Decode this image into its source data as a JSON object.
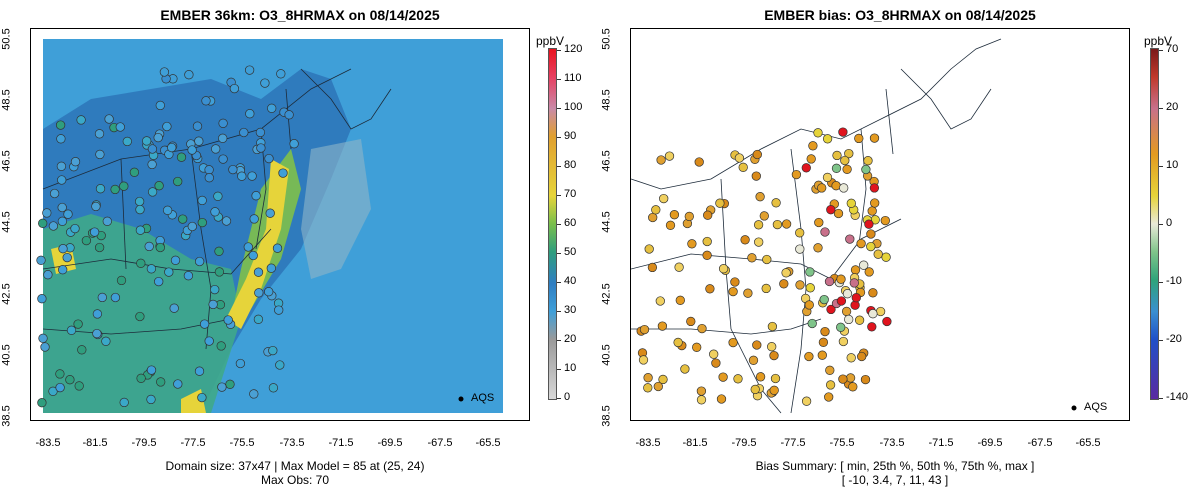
{
  "left": {
    "title": "EMBER 36km: O3_8HRMAX on 08/14/2025",
    "y_ticks": [
      "50.5",
      "48.5",
      "46.5",
      "44.5",
      "42.5",
      "40.5",
      "38.5"
    ],
    "x_ticks": [
      "-83.5",
      "-81.5",
      "-79.5",
      "-77.5",
      "-75.5",
      "-73.5",
      "-71.5",
      "-69.5",
      "-67.5",
      "-65.5"
    ],
    "footer_line1": "Domain size: 37x47 | Max Model = 85 at (25, 24)",
    "footer_line2": "Max Obs: 70",
    "legend_label": "AQS",
    "colorbar": {
      "unit": "ppbV",
      "ticks": [
        "120",
        "110",
        "100",
        "90",
        "80",
        "70",
        "60",
        "50",
        "40",
        "30",
        "20",
        "10",
        "0"
      ]
    }
  },
  "right": {
    "title": "EMBER bias: O3_8HRMAX on 08/14/2025",
    "y_ticks": [
      "50.5",
      "48.5",
      "46.5",
      "44.5",
      "42.5",
      "40.5",
      "38.5"
    ],
    "x_ticks": [
      "-83.5",
      "-81.5",
      "-79.5",
      "-77.5",
      "-75.5",
      "-73.5",
      "-71.5",
      "-69.5",
      "-67.5",
      "-65.5"
    ],
    "footer_line1": "Bias Summary: [ min, 25th %, 50th %, 75th %, max ]",
    "footer_line2": "[ -10,   3.4,   7,   11,   43 ]",
    "legend_label": "AQS",
    "colorbar": {
      "unit": "ppbV",
      "ticks": [
        "70",
        "20",
        "10",
        "0",
        "-10",
        "-20",
        "-140"
      ]
    }
  },
  "colors": {
    "ocean_model": "#3f9fd8",
    "land_model": "#2f7ec2",
    "coastal_high": "#e6d43a",
    "bias_high": "#e0141e",
    "bias_mid": "#e39a20",
    "bias_zero": "#e9e9d8"
  }
}
